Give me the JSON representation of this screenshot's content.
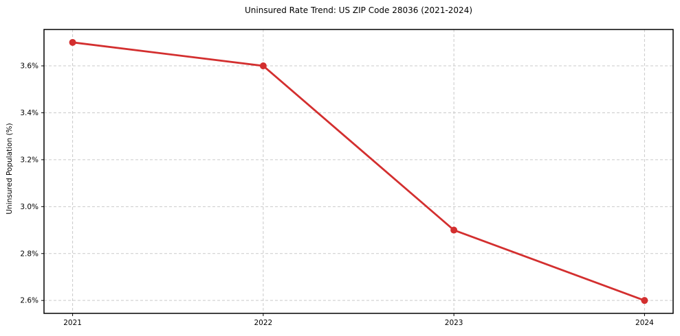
{
  "page": {
    "background_color": "#ffffff"
  },
  "chart_data": {
    "type": "line",
    "title": "Uninsured Rate Trend: US ZIP Code 28036 (2021-2024)",
    "xlabel": "",
    "ylabel": "Uninsured Population (%)",
    "x": [
      2021,
      2022,
      2023,
      2024
    ],
    "xtick_labels": [
      "2021",
      "2022",
      "2023",
      "2024"
    ],
    "series": [
      {
        "name": "Uninsured rate",
        "values": [
          3.7,
          3.6,
          2.9,
          2.6
        ]
      }
    ],
    "yticks": [
      2.6,
      2.8,
      3.0,
      3.2,
      3.4,
      3.6
    ],
    "ytick_labels": [
      "2.6%",
      "2.8%",
      "3.0%",
      "3.2%",
      "3.4%",
      "3.6%"
    ],
    "xlim": [
      2020.85,
      2024.15
    ],
    "ylim": [
      2.545,
      3.755
    ],
    "grid": true,
    "grid_style": "dashed",
    "legend": false,
    "colors": {
      "line": "#d32f2f",
      "marker": "#d32f2f",
      "grid": "#c9c9c9",
      "spine": "#000000",
      "tick_text": "#000000",
      "background": "#ffffff"
    }
  }
}
